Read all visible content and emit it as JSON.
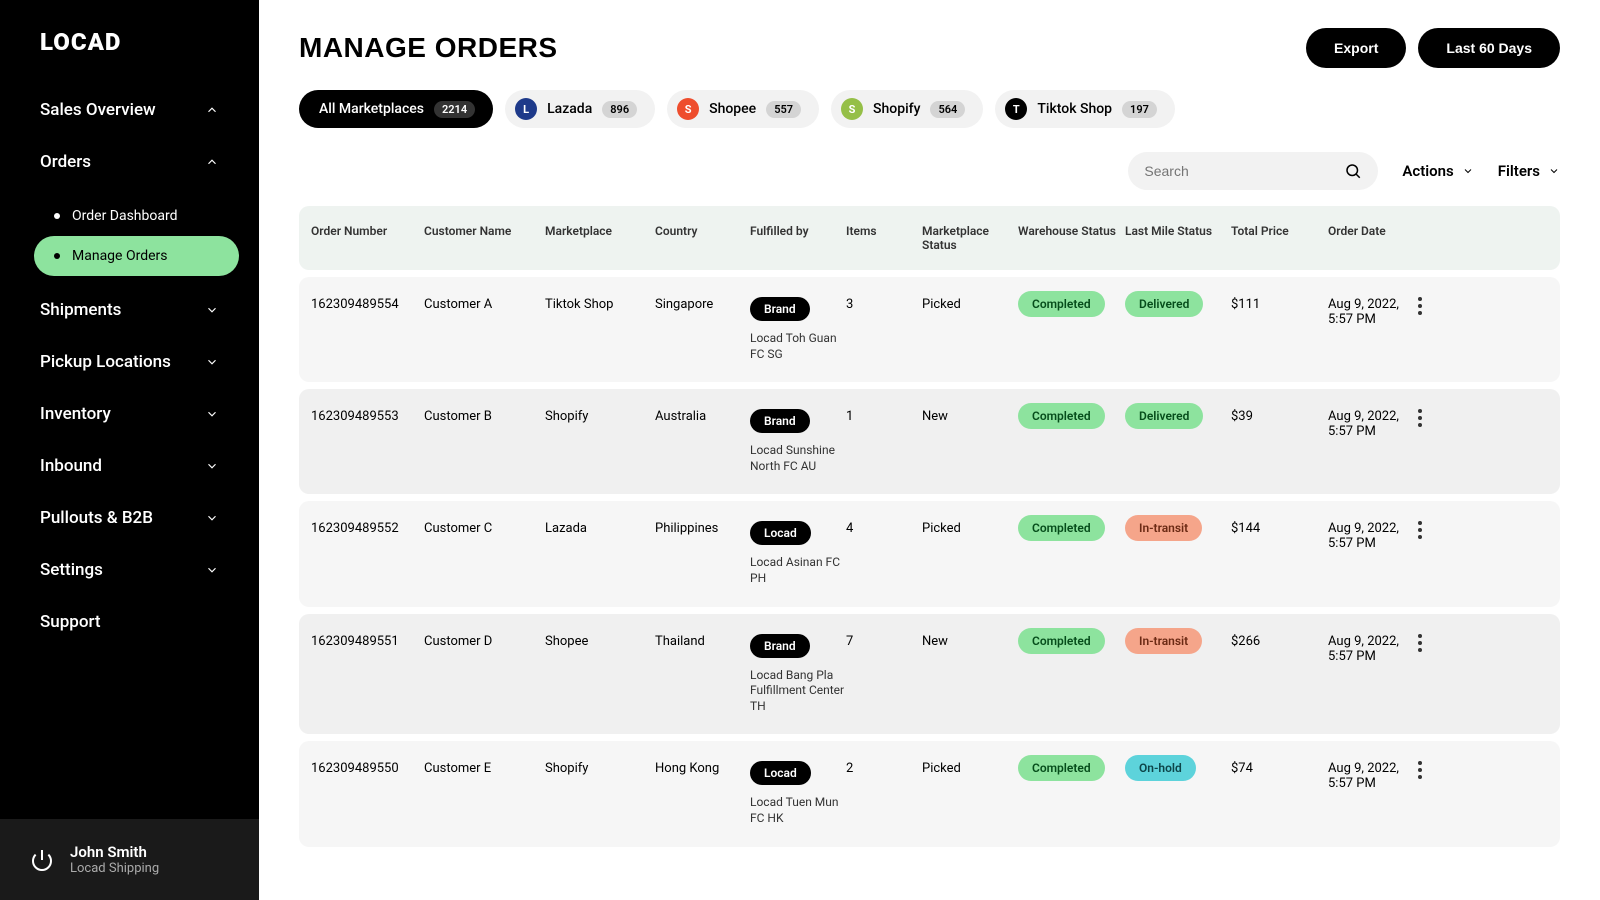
{
  "logo": "LOCAD",
  "sidebar": {
    "items": [
      {
        "label": "Sales Overview",
        "expanded": true
      },
      {
        "label": "Orders",
        "expanded": true
      },
      {
        "label": "Shipments"
      },
      {
        "label": "Pickup Locations"
      },
      {
        "label": "Inventory"
      },
      {
        "label": "Inbound"
      },
      {
        "label": "Pullouts & B2B"
      },
      {
        "label": "Settings"
      },
      {
        "label": "Support"
      }
    ],
    "orders_sub": [
      {
        "label": "Order Dashboard"
      },
      {
        "label": "Manage Orders",
        "active": true
      }
    ]
  },
  "user": {
    "name": "John Smith",
    "company": "Locad Shipping"
  },
  "page": {
    "title": "MANAGE ORDERS"
  },
  "header_buttons": {
    "export": "Export",
    "date_range": "Last 60 Days"
  },
  "marketplaces": [
    {
      "label": "All Marketplaces",
      "count": "2214",
      "active": true
    },
    {
      "label": "Lazada",
      "count": "896",
      "icon_bg": "#1e3a8a"
    },
    {
      "label": "Shopee",
      "count": "557",
      "icon_bg": "#ee4d2d"
    },
    {
      "label": "Shopify",
      "count": "564",
      "icon_bg": "#95bf47"
    },
    {
      "label": "Tiktok Shop",
      "count": "197",
      "icon_bg": "#000"
    }
  ],
  "toolbar": {
    "search_placeholder": "Search",
    "actions": "Actions",
    "filters": "Filters"
  },
  "table": {
    "columns": [
      "Order Number",
      "Customer Name",
      "Marketplace",
      "Country",
      "Fulfilled by",
      "Items",
      "Marketplace Status",
      "Warehouse Status",
      "Last Mile Status",
      "Total Price",
      "Order Date"
    ],
    "rows": [
      {
        "order": "162309489554",
        "customer": "Customer A",
        "marketplace": "Tiktok Shop",
        "country": "Singapore",
        "brand": "Brand",
        "fc": "Locad Toh Guan FC SG",
        "items": "3",
        "mp_status": "Picked",
        "wh_status": "Completed",
        "lm_status": "Delivered",
        "lm_class": "delivered",
        "price": "$111",
        "date": "Aug 9, 2022, 5:57 PM"
      },
      {
        "order": "162309489553",
        "customer": "Customer B",
        "marketplace": "Shopify",
        "country": "Australia",
        "brand": "Brand",
        "fc": "Locad Sunshine North FC AU",
        "items": "1",
        "mp_status": "New",
        "wh_status": "Completed",
        "lm_status": "Delivered",
        "lm_class": "delivered",
        "price": "$39",
        "date": "Aug 9, 2022, 5:57 PM"
      },
      {
        "order": "162309489552",
        "customer": "Customer C",
        "marketplace": "Lazada",
        "country": "Philippines",
        "brand": "Locad",
        "fc": "Locad Asinan FC PH",
        "items": "4",
        "mp_status": "Picked",
        "wh_status": "Completed",
        "lm_status": "In-transit",
        "lm_class": "intransit",
        "price": "$144",
        "date": "Aug 9, 2022, 5:57 PM"
      },
      {
        "order": "162309489551",
        "customer": "Customer D",
        "marketplace": "Shopee",
        "country": "Thailand",
        "brand": "Brand",
        "fc": "Locad Bang Pla Fulfillment Center TH",
        "items": "7",
        "mp_status": "New",
        "wh_status": "Completed",
        "lm_status": "In-transit",
        "lm_class": "intransit",
        "price": "$266",
        "date": "Aug 9, 2022, 5:57 PM"
      },
      {
        "order": "162309489550",
        "customer": "Customer E",
        "marketplace": "Shopify",
        "country": "Hong Kong",
        "brand": "Locad",
        "fc": "Locad Tuen Mun FC HK",
        "items": "2",
        "mp_status": "Picked",
        "wh_status": "Completed",
        "lm_status": "On-hold",
        "lm_class": "onhold",
        "price": "$74",
        "date": "Aug 9, 2022, 5:57 PM"
      }
    ]
  },
  "colors": {
    "accent_green": "#8de39e",
    "accent_orange": "#f5a58a",
    "accent_cyan": "#5dd3db"
  }
}
